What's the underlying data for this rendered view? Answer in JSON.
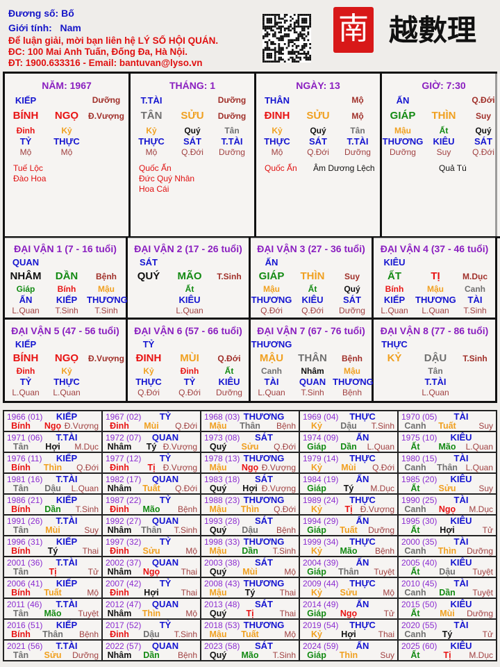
{
  "header": {
    "subject": "Đương số: Bố",
    "gender_label": "Giới tính:",
    "gender": "Nam",
    "line1": "Để luận giải, mời bạn liên hệ LÝ SỐ HỘI QUÁN.",
    "line2": "ĐC: 100 Mai Anh Tuấn, Đống Đa, Hà Nội.",
    "line3": "ĐT: 1900.633316 - Email: bantuvan@lyso.vn"
  },
  "logo": {
    "text": "南越數理",
    "seal_color": "#d81818"
  },
  "colors": {
    "fire": "#e81414",
    "earth": "#f0a020",
    "metal": "#707070",
    "water": "#111111",
    "wood": "#138a13",
    "good_star": "#e01010",
    "bad_star": "#111111"
  },
  "elements": {
    "bính": "fire",
    "đinh": "fire",
    "mậu": "earth",
    "kỷ": "earth",
    "canh": "metal",
    "tân": "metal",
    "nhâm": "water",
    "quý": "water",
    "giáp": "wood",
    "ất": "wood",
    "tý": "water",
    "sửu": "earth",
    "dần": "wood",
    "mão": "wood",
    "thìn": "earth",
    "tị": "fire",
    "ngọ": "fire",
    "mùi": "earth",
    "thân": "metal",
    "dậu": "metal",
    "tuất": "earth",
    "hợi": "water"
  },
  "pillars": [
    {
      "title": "NĂM: 1967",
      "god": "KIẾP",
      "god_stage": "Dưỡng",
      "stem": "BÍNH",
      "branch": "NGỌ",
      "stage": "Đ.Vượng",
      "hidden": [
        {
          "stem": "Đinh",
          "god": "TỶ",
          "stage": "Mộ"
        },
        {
          "stem": "Kỷ",
          "god": "THỰC",
          "stage": "Mộ"
        }
      ],
      "stars": [
        {
          "name": "Tuế Lộc",
          "type": "good"
        },
        {
          "name": "Đào Hoa",
          "type": "good"
        }
      ]
    },
    {
      "title": "THÁNG: 1",
      "god": "T.TÀI",
      "god_stage": "Dưỡng",
      "stem": "TÂN",
      "branch": "SỬU",
      "stage": "Dưỡng",
      "hidden": [
        {
          "stem": "Kỷ",
          "god": "THỰC",
          "stage": "Mộ"
        },
        {
          "stem": "Quý",
          "god": "SÁT",
          "stage": "Q.Đới"
        },
        {
          "stem": "Tân",
          "god": "T.TÀI",
          "stage": "Dưỡng"
        }
      ],
      "stars": [
        {
          "name": "Quốc Ấn",
          "type": "good"
        },
        {
          "name": "Đức Quý Nhân",
          "type": "good"
        },
        {
          "name": "Hoa Cái",
          "type": "good"
        }
      ]
    },
    {
      "title": "NGÀY: 13",
      "god": "THÂN",
      "god_stage": "Mộ",
      "stem": "ĐINH",
      "branch": "SỬU",
      "stage": "Mộ",
      "hidden": [
        {
          "stem": "Kỷ",
          "god": "THỰC",
          "stage": "Mộ"
        },
        {
          "stem": "Quý",
          "god": "SÁT",
          "stage": "Q.Đới"
        },
        {
          "stem": "Tân",
          "god": "T.TÀI",
          "stage": "Dưỡng"
        }
      ],
      "stars": [
        {
          "name": "Quốc Ấn",
          "type": "good"
        },
        {
          "name": "Âm Dương Lệch",
          "type": "bad"
        }
      ]
    },
    {
      "title": "GIỜ: 7:30",
      "god": "ẤN",
      "god_stage": "Q.Đới",
      "stem": "GIÁP",
      "branch": "THÌN",
      "stage": "Suy",
      "hidden": [
        {
          "stem": "Mậu",
          "god": "THƯƠNG",
          "stage": "Dưỡng"
        },
        {
          "stem": "Ất",
          "god": "KIÊU",
          "stage": "Suy"
        },
        {
          "stem": "Quý",
          "god": "SÁT",
          "stage": "Q.Đới"
        }
      ],
      "stars": [
        {
          "name": "Quả Tú",
          "type": "bad"
        }
      ]
    }
  ],
  "dai_van": [
    {
      "title": "ĐẠI VẬN 1 (7 - 16 tuổi)",
      "god": "QUAN",
      "stem": "NHÂM",
      "branch": "DẦN",
      "stage": "Bệnh",
      "hidden": [
        {
          "stem": "Giáp",
          "god": "ẤN",
          "stage": "L.Quan"
        },
        {
          "stem": "Bính",
          "god": "KIẾP",
          "stage": "T.Sinh"
        },
        {
          "stem": "Mậu",
          "god": "THƯƠNG",
          "stage": "T.Sinh"
        }
      ]
    },
    {
      "title": "ĐẠI VẬN 2 (17 - 26 tuổi)",
      "god": "SÁT",
      "stem": "QUÝ",
      "branch": "MÃO",
      "stage": "T.Sinh",
      "hidden": [
        {
          "stem": "Ất",
          "god": "KIÊU",
          "stage": "L.Quan"
        }
      ]
    },
    {
      "title": "ĐẠI VẬN 3 (27 - 36 tuổi)",
      "god": "ẤN",
      "stem": "GIÁP",
      "branch": "THÌN",
      "stage": "Suy",
      "hidden": [
        {
          "stem": "Mậu",
          "god": "THƯƠNG",
          "stage": "Q.Đới"
        },
        {
          "stem": "Ất",
          "god": "KIÊU",
          "stage": "Q.Đới"
        },
        {
          "stem": "Quý",
          "god": "SÁT",
          "stage": "Dưỡng"
        }
      ]
    },
    {
      "title": "ĐẠI VẬN 4 (37 - 46 tuổi)",
      "god": "KIÊU",
      "stem": "ẤT",
      "branch": "TỊ",
      "stage": "M.Dục",
      "hidden": [
        {
          "stem": "Bính",
          "god": "KIẾP",
          "stage": "L.Quan"
        },
        {
          "stem": "Mậu",
          "god": "THƯƠNG",
          "stage": "L.Quan"
        },
        {
          "stem": "Canh",
          "god": "TÀI",
          "stage": "T.Sinh"
        }
      ]
    },
    {
      "title": "ĐẠI VẬN 5 (47 - 56 tuổi)",
      "god": "KIẾP",
      "stem": "BÍNH",
      "branch": "NGỌ",
      "stage": "Đ.Vượng",
      "hidden": [
        {
          "stem": "Đinh",
          "god": "TỶ",
          "stage": "L.Quan"
        },
        {
          "stem": "Kỷ",
          "god": "THỰC",
          "stage": "L.Quan"
        }
      ]
    },
    {
      "title": "ĐẠI VẬN 6 (57 - 66 tuổi)",
      "god": "TỶ",
      "stem": "ĐINH",
      "branch": "MÙI",
      "stage": "Q.Đới",
      "hidden": [
        {
          "stem": "Kỷ",
          "god": "THỰC",
          "stage": "Q.Đới"
        },
        {
          "stem": "Đinh",
          "god": "TỶ",
          "stage": "Q.Đới"
        },
        {
          "stem": "Ất",
          "god": "KIÊU",
          "stage": "Dưỡng"
        }
      ]
    },
    {
      "title": "ĐẠI VẬN 7 (67 - 76 tuổi)",
      "god": "THƯƠNG",
      "stem": "MẬU",
      "branch": "THÂN",
      "stage": "Bệnh",
      "hidden": [
        {
          "stem": "Canh",
          "god": "TÀI",
          "stage": "L.Quan"
        },
        {
          "stem": "Nhâm",
          "god": "QUAN",
          "stage": "T.Sinh"
        },
        {
          "stem": "Mậu",
          "god": "THƯƠNG",
          "stage": "Bệnh"
        }
      ]
    },
    {
      "title": "ĐẠI VẬN 8 (77 - 86 tuổi)",
      "god": "THỰC",
      "stem": "KỶ",
      "branch": "DẬU",
      "stage": "T.Sinh",
      "hidden": [
        {
          "stem": "Tân",
          "god": "T.TÀI",
          "stage": "L.Quan"
        }
      ]
    }
  ],
  "years": [
    [
      "1966 (01)",
      "KIẾP",
      "Bính",
      "Ngọ",
      "Đ.Vượng"
    ],
    [
      "1967 (02)",
      "TỶ",
      "Đinh",
      "Mùi",
      "Q.Đới"
    ],
    [
      "1968 (03)",
      "THƯƠNG",
      "Mậu",
      "Thân",
      "Bệnh"
    ],
    [
      "1969 (04)",
      "THỰC",
      "Kỷ",
      "Dậu",
      "T.Sinh"
    ],
    [
      "1970 (05)",
      "TÀI",
      "Canh",
      "Tuất",
      "Suy"
    ],
    [
      "1971 (06)",
      "T.TÀI",
      "Tân",
      "Hợi",
      "M.Dục"
    ],
    [
      "1972 (07)",
      "QUAN",
      "Nhâm",
      "Tý",
      "Đ.Vượng"
    ],
    [
      "1973 (08)",
      "SÁT",
      "Quý",
      "Sửu",
      "Q.Đới"
    ],
    [
      "1974 (09)",
      "ẤN",
      "Giáp",
      "Dần",
      "L.Quan"
    ],
    [
      "1975 (10)",
      "KIÊU",
      "Ất",
      "Mão",
      "L.Quan"
    ],
    [
      "1976 (11)",
      "KIẾP",
      "Bính",
      "Thìn",
      "Q.Đới"
    ],
    [
      "1977 (12)",
      "TỶ",
      "Đinh",
      "Tị",
      "Đ.Vượng"
    ],
    [
      "1978 (13)",
      "THƯƠNG",
      "Mậu",
      "Ngọ",
      "Đ.Vượng"
    ],
    [
      "1979 (14)",
      "THỰC",
      "Kỷ",
      "Mùi",
      "Q.Đới"
    ],
    [
      "1980 (15)",
      "TÀI",
      "Canh",
      "Thân",
      "L.Quan"
    ],
    [
      "1981 (16)",
      "T.TÀI",
      "Tân",
      "Dậu",
      "L.Quan"
    ],
    [
      "1982 (17)",
      "QUAN",
      "Nhâm",
      "Tuất",
      "Q.Đới"
    ],
    [
      "1983 (18)",
      "SÁT",
      "Quý",
      "Hợi",
      "Đ.Vượng"
    ],
    [
      "1984 (19)",
      "ẤN",
      "Giáp",
      "Tý",
      "M.Dục"
    ],
    [
      "1985 (20)",
      "KIÊU",
      "Ất",
      "Sửu",
      "Suy"
    ],
    [
      "1986 (21)",
      "KIẾP",
      "Bính",
      "Dần",
      "T.Sinh"
    ],
    [
      "1987 (22)",
      "TỶ",
      "Đinh",
      "Mão",
      "Bệnh"
    ],
    [
      "1988 (23)",
      "THƯƠNG",
      "Mậu",
      "Thìn",
      "Q.Đới"
    ],
    [
      "1989 (24)",
      "THỰC",
      "Kỷ",
      "Tị",
      "Đ.Vượng"
    ],
    [
      "1990 (25)",
      "TÀI",
      "Canh",
      "Ngọ",
      "M.Dục"
    ],
    [
      "1991 (26)",
      "T.TÀI",
      "Tân",
      "Mùi",
      "Suy"
    ],
    [
      "1992 (27)",
      "QUAN",
      "Nhâm",
      "Thân",
      "T.Sinh"
    ],
    [
      "1993 (28)",
      "SÁT",
      "Quý",
      "Dậu",
      "Bệnh"
    ],
    [
      "1994 (29)",
      "ẤN",
      "Giáp",
      "Tuất",
      "Dưỡng"
    ],
    [
      "1995 (30)",
      "KIÊU",
      "Ất",
      "Hợi",
      "Tử"
    ],
    [
      "1996 (31)",
      "KIẾP",
      "Bính",
      "Tý",
      "Thai"
    ],
    [
      "1997 (32)",
      "TỶ",
      "Đinh",
      "Sửu",
      "Mộ"
    ],
    [
      "1998 (33)",
      "THƯƠNG",
      "Mậu",
      "Dần",
      "T.Sinh"
    ],
    [
      "1999 (34)",
      "THỰC",
      "Kỷ",
      "Mão",
      "Bệnh"
    ],
    [
      "2000 (35)",
      "TÀI",
      "Canh",
      "Thìn",
      "Dưỡng"
    ],
    [
      "2001 (36)",
      "T.TÀI",
      "Tân",
      "Tị",
      "Tử"
    ],
    [
      "2002 (37)",
      "QUAN",
      "Nhâm",
      "Ngọ",
      "Thai"
    ],
    [
      "2003 (38)",
      "SÁT",
      "Quý",
      "Mùi",
      "Mộ"
    ],
    [
      "2004 (39)",
      "ẤN",
      "Giáp",
      "Thân",
      "Tuyệt"
    ],
    [
      "2005 (40)",
      "KIÊU",
      "Ất",
      "Dậu",
      "Tuyệt"
    ],
    [
      "2006 (41)",
      "KIẾP",
      "Bính",
      "Tuất",
      "Mộ"
    ],
    [
      "2007 (42)",
      "TỶ",
      "Đinh",
      "Hợi",
      "Thai"
    ],
    [
      "2008 (43)",
      "THƯƠNG",
      "Mậu",
      "Tý",
      "Thai"
    ],
    [
      "2009 (44)",
      "THỰC",
      "Kỷ",
      "Sửu",
      "Mộ"
    ],
    [
      "2010 (45)",
      "TÀI",
      "Canh",
      "Dần",
      "Tuyệt"
    ],
    [
      "2011 (46)",
      "T.TÀI",
      "Tân",
      "Mão",
      "Tuyệt"
    ],
    [
      "2012 (47)",
      "QUAN",
      "Nhâm",
      "Thìn",
      "Mộ"
    ],
    [
      "2013 (48)",
      "SÁT",
      "Quý",
      "Tị",
      "Thai"
    ],
    [
      "2014 (49)",
      "ẤN",
      "Giáp",
      "Ngọ",
      "Tử"
    ],
    [
      "2015 (50)",
      "KIÊU",
      "Ất",
      "Mùi",
      "Dưỡng"
    ],
    [
      "2016 (51)",
      "KIẾP",
      "Bính",
      "Thân",
      "Bệnh"
    ],
    [
      "2017 (52)",
      "TỶ",
      "Đinh",
      "Dậu",
      "T.Sinh"
    ],
    [
      "2018 (53)",
      "THƯƠNG",
      "Mậu",
      "Tuất",
      "Mộ"
    ],
    [
      "2019 (54)",
      "THỰC",
      "Kỷ",
      "Hợi",
      "Thai"
    ],
    [
      "2020 (55)",
      "TÀI",
      "Canh",
      "Tý",
      "Tử"
    ],
    [
      "2021 (56)",
      "T.TÀI",
      "Tân",
      "Sửu",
      "Dưỡng"
    ],
    [
      "2022 (57)",
      "QUAN",
      "Nhâm",
      "Dần",
      "Bệnh"
    ],
    [
      "2023 (58)",
      "SÁT",
      "Quý",
      "Mão",
      "T.Sinh"
    ],
    [
      "2024 (59)",
      "ẤN",
      "Giáp",
      "Thìn",
      "Suy"
    ],
    [
      "2025 (60)",
      "KIÊU",
      "Ất",
      "Tị",
      "M.Dục"
    ]
  ]
}
